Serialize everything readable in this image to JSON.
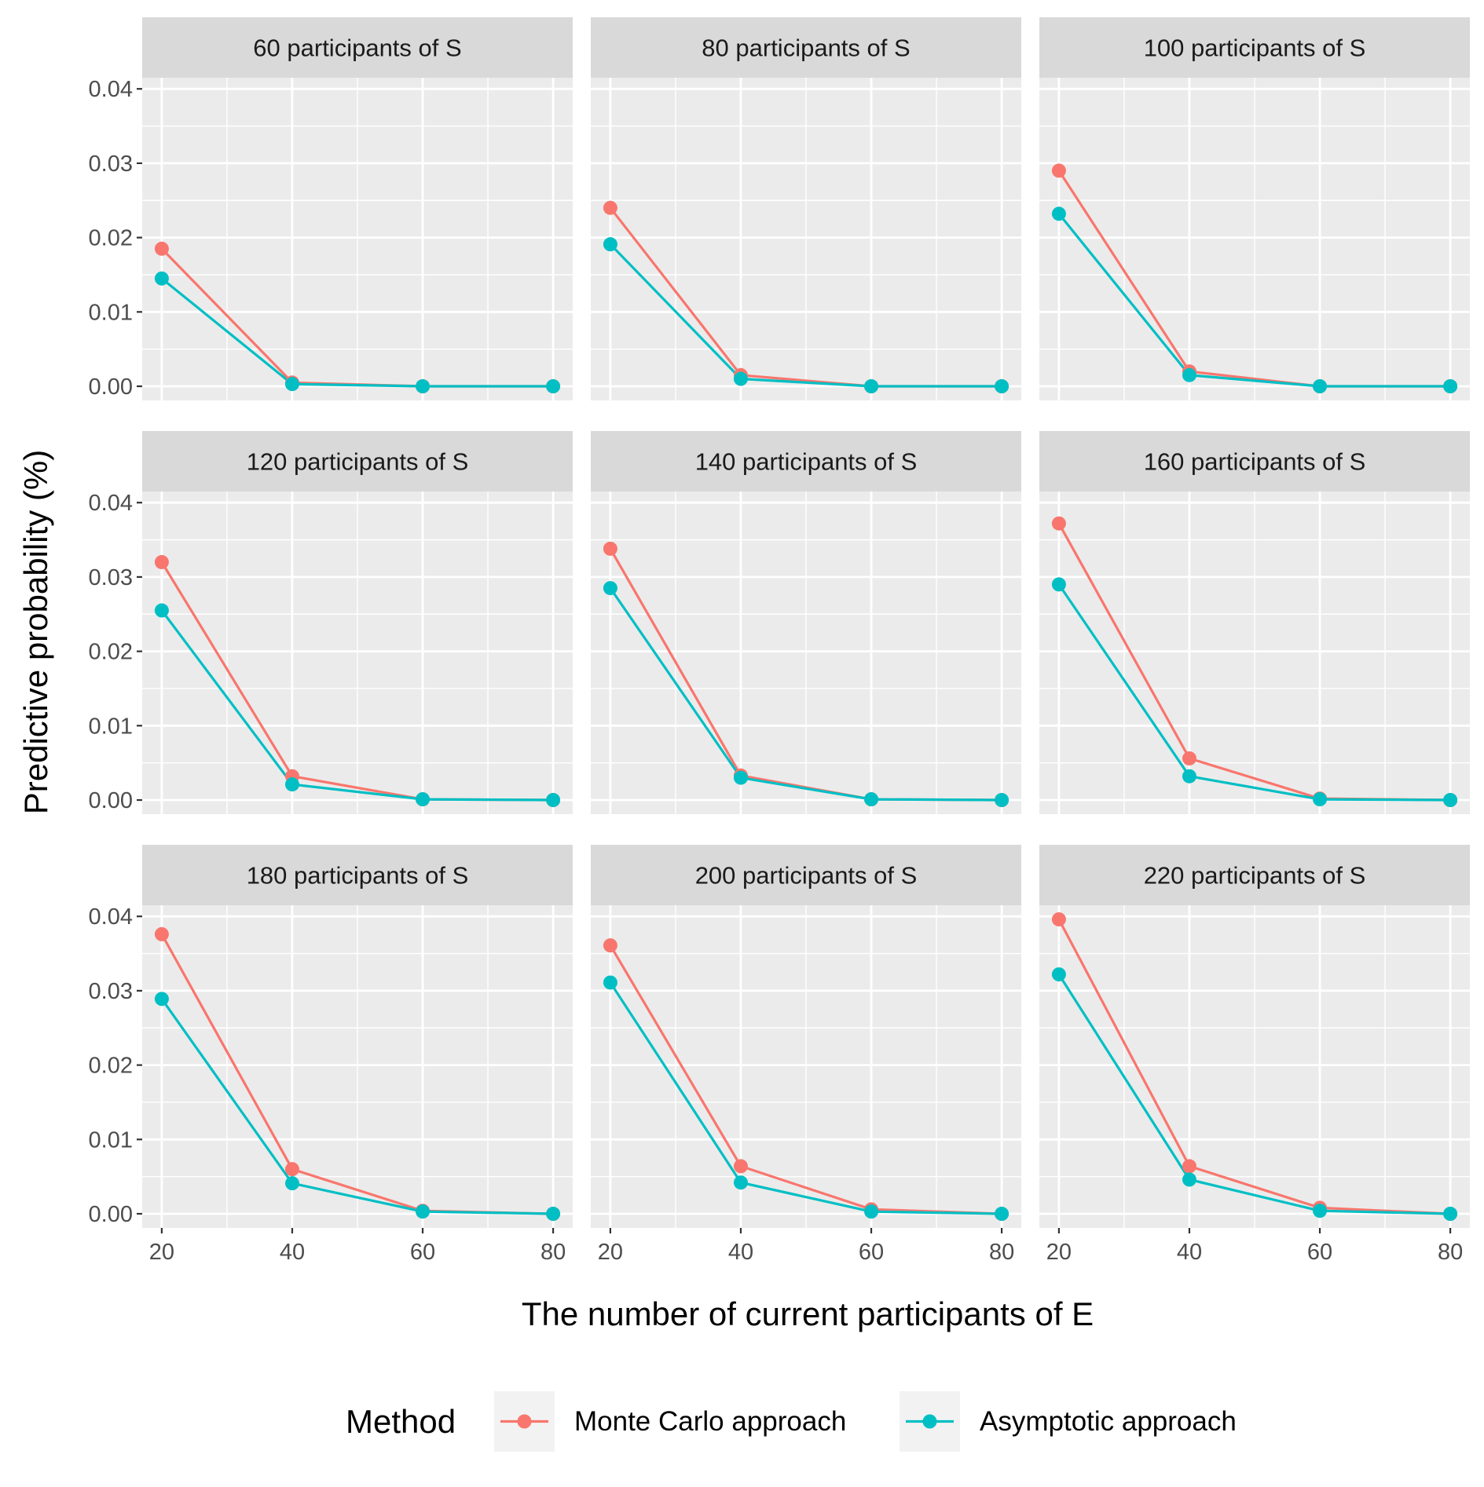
{
  "chart_data": {
    "type": "line",
    "facet_layout": "3x3 grid, shared axes",
    "xlabel": "The number of current participants of E",
    "ylabel": "Predictive probability (%)",
    "x": [
      20,
      40,
      60,
      80
    ],
    "x_ticks": [
      20,
      40,
      60,
      80
    ],
    "x_tick_labels": [
      "20",
      "40",
      "60",
      "80"
    ],
    "xlim": [
      17,
      83
    ],
    "y_ticks": [
      0,
      0.01,
      0.02,
      0.03,
      0.04
    ],
    "y_tick_labels": [
      "0.00",
      "0.01",
      "0.02",
      "0.03",
      "0.04"
    ],
    "ylim": [
      -0.0019,
      0.0415
    ],
    "grid": true,
    "legend": {
      "title": "Method",
      "position": "bottom",
      "entries": [
        {
          "name": "Monte Carlo approach",
          "color": "#F8766D"
        },
        {
          "name": "Asymptotic approach",
          "color": "#00BFC4"
        }
      ]
    },
    "panels": [
      {
        "title": "60 participants of S",
        "series": [
          {
            "name": "Monte Carlo approach",
            "values": [
              0.0185,
              0.0005,
              0.0,
              0.0
            ]
          },
          {
            "name": "Asymptotic approach",
            "values": [
              0.0145,
              0.0003,
              0.0,
              0.0
            ]
          }
        ]
      },
      {
        "title": "80 participants of S",
        "series": [
          {
            "name": "Monte Carlo approach",
            "values": [
              0.024,
              0.0015,
              0.0,
              0.0
            ]
          },
          {
            "name": "Asymptotic approach",
            "values": [
              0.0191,
              0.001,
              0.0,
              0.0
            ]
          }
        ]
      },
      {
        "title": "100 participants of S",
        "series": [
          {
            "name": "Monte Carlo approach",
            "values": [
              0.029,
              0.002,
              0.0,
              0.0
            ]
          },
          {
            "name": "Asymptotic approach",
            "values": [
              0.0232,
              0.0015,
              0.0,
              0.0
            ]
          }
        ]
      },
      {
        "title": "120 participants of S",
        "series": [
          {
            "name": "Monte Carlo approach",
            "values": [
              0.032,
              0.0032,
              0.0001,
              0.0
            ]
          },
          {
            "name": "Asymptotic approach",
            "values": [
              0.0255,
              0.0021,
              0.0001,
              0.0
            ]
          }
        ]
      },
      {
        "title": "140 participants of S",
        "series": [
          {
            "name": "Monte Carlo approach",
            "values": [
              0.0338,
              0.0033,
              0.0001,
              0.0
            ]
          },
          {
            "name": "Asymptotic approach",
            "values": [
              0.0285,
              0.003,
              0.0001,
              0.0
            ]
          }
        ]
      },
      {
        "title": "160 participants of S",
        "series": [
          {
            "name": "Monte Carlo approach",
            "values": [
              0.0372,
              0.0056,
              0.0002,
              0.0
            ]
          },
          {
            "name": "Asymptotic approach",
            "values": [
              0.029,
              0.0032,
              0.0001,
              0.0
            ]
          }
        ]
      },
      {
        "title": "180 participants of S",
        "series": [
          {
            "name": "Monte Carlo approach",
            "values": [
              0.0376,
              0.006,
              0.0004,
              0.0
            ]
          },
          {
            "name": "Asymptotic approach",
            "values": [
              0.0289,
              0.0041,
              0.0003,
              0.0
            ]
          }
        ]
      },
      {
        "title": "200 participants of S",
        "series": [
          {
            "name": "Monte Carlo approach",
            "values": [
              0.0361,
              0.0064,
              0.0006,
              0.0
            ]
          },
          {
            "name": "Asymptotic approach",
            "values": [
              0.0311,
              0.0042,
              0.0003,
              0.0
            ]
          }
        ]
      },
      {
        "title": "220 participants of S",
        "series": [
          {
            "name": "Monte Carlo approach",
            "values": [
              0.0396,
              0.0064,
              0.0008,
              0.0
            ]
          },
          {
            "name": "Asymptotic approach",
            "values": [
              0.0322,
              0.0046,
              0.0004,
              0.0
            ]
          }
        ]
      }
    ]
  }
}
